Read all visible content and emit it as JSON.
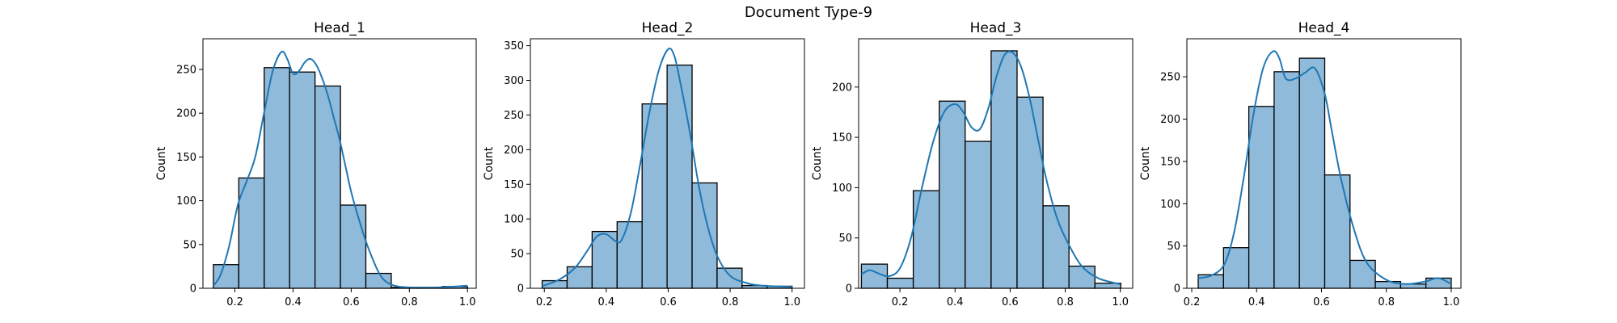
{
  "figure": {
    "suptitle": "Document Type-9"
  },
  "style": {
    "bar_fill": "#8fbad9",
    "bar_edge": "#000000",
    "kde_color": "#1f77b4",
    "axes_edge": "#000000"
  },
  "chart_data": [
    {
      "type": "histogram",
      "title": "Head_1",
      "ylabel": "Count",
      "xlim": [
        0.09,
        1.03
      ],
      "ylim": [
        0,
        285
      ],
      "xticks": [
        "0.2",
        "0.4",
        "0.6",
        "0.8",
        "1.0"
      ],
      "yticks": [
        "0",
        "50",
        "100",
        "150",
        "200",
        "250"
      ],
      "bin_edges": [
        0.126,
        0.2134,
        0.3008,
        0.3882,
        0.4756,
        0.563,
        0.6504,
        0.7378,
        0.8252,
        0.9126,
        1.0
      ],
      "values": [
        27,
        126,
        252,
        247,
        231,
        95,
        17,
        1,
        1,
        2
      ],
      "kde": {
        "x": [
          0.126,
          0.15,
          0.18,
          0.21,
          0.24,
          0.27,
          0.3,
          0.33,
          0.36,
          0.38,
          0.4,
          0.42,
          0.44,
          0.46,
          0.48,
          0.5,
          0.52,
          0.54,
          0.56,
          0.58,
          0.6,
          0.63,
          0.66,
          0.7,
          0.74,
          0.8,
          0.9,
          1.0
        ],
        "y": [
          3,
          15,
          48,
          95,
          122,
          150,
          200,
          248,
          270,
          262,
          245,
          248,
          258,
          262,
          255,
          240,
          220,
          195,
          170,
          140,
          110,
          75,
          45,
          15,
          4,
          1,
          1,
          3
        ]
      }
    },
    {
      "type": "histogram",
      "title": "Head_2",
      "ylabel": "Count",
      "xlim": [
        0.155,
        1.04
      ],
      "ylim": [
        0,
        360
      ],
      "xticks": [
        "0.2",
        "0.4",
        "0.6",
        "0.8",
        "1.0"
      ],
      "yticks": [
        "0",
        "50",
        "100",
        "150",
        "200",
        "250",
        "300",
        "350"
      ],
      "bin_edges": [
        0.193,
        0.2737,
        0.3544,
        0.4351,
        0.5158,
        0.5965,
        0.6772,
        0.7579,
        0.8386,
        0.9193,
        1.0
      ],
      "values": [
        11,
        31,
        82,
        96,
        266,
        322,
        152,
        29,
        4,
        3
      ],
      "kde": {
        "x": [
          0.193,
          0.25,
          0.3,
          0.34,
          0.37,
          0.4,
          0.43,
          0.45,
          0.48,
          0.51,
          0.54,
          0.57,
          0.6,
          0.62,
          0.64,
          0.67,
          0.7,
          0.73,
          0.76,
          0.8,
          0.85,
          0.9,
          1.0
        ],
        "y": [
          3,
          13,
          30,
          55,
          75,
          78,
          68,
          70,
          110,
          180,
          255,
          315,
          345,
          335,
          295,
          225,
          145,
          85,
          45,
          18,
          8,
          4,
          2
        ]
      }
    },
    {
      "type": "histogram",
      "title": "Head_3",
      "ylabel": "Count",
      "xlim": [
        0.05,
        1.045
      ],
      "ylim": [
        0,
        248
      ],
      "xticks": [
        "0.2",
        "0.4",
        "0.6",
        "0.8",
        "1.0"
      ],
      "yticks": [
        "0",
        "50",
        "100",
        "150",
        "200"
      ],
      "bin_edges": [
        0.06,
        0.1542,
        0.2484,
        0.3426,
        0.4368,
        0.531,
        0.6252,
        0.7194,
        0.8136,
        0.9078,
        1.002
      ],
      "values": [
        24,
        10,
        97,
        186,
        146,
        236,
        190,
        82,
        22,
        5
      ],
      "kde": {
        "x": [
          0.06,
          0.09,
          0.12,
          0.16,
          0.2,
          0.24,
          0.28,
          0.32,
          0.36,
          0.4,
          0.43,
          0.46,
          0.49,
          0.52,
          0.55,
          0.58,
          0.61,
          0.64,
          0.67,
          0.7,
          0.73,
          0.77,
          0.81,
          0.86,
          0.92,
          1.0
        ],
        "y": [
          14,
          18,
          15,
          12,
          20,
          50,
          100,
          145,
          175,
          183,
          175,
          160,
          158,
          178,
          210,
          232,
          234,
          220,
          190,
          150,
          110,
          70,
          45,
          22,
          10,
          4
        ]
      }
    },
    {
      "type": "histogram",
      "title": "Head_4",
      "ylabel": "Count",
      "xlim": [
        0.185,
        1.03
      ],
      "ylim": [
        0,
        295
      ],
      "xticks": [
        "0.2",
        "0.4",
        "0.6",
        "0.8",
        "1.0"
      ],
      "yticks": [
        "0",
        "50",
        "100",
        "150",
        "200",
        "250"
      ],
      "bin_edges": [
        0.22,
        0.298,
        0.376,
        0.454,
        0.532,
        0.61,
        0.688,
        0.766,
        0.844,
        0.922,
        1.0
      ],
      "values": [
        16,
        48,
        215,
        256,
        272,
        134,
        33,
        8,
        5,
        12
      ],
      "kde": {
        "x": [
          0.22,
          0.26,
          0.3,
          0.33,
          0.36,
          0.39,
          0.42,
          0.45,
          0.47,
          0.49,
          0.52,
          0.55,
          0.58,
          0.61,
          0.63,
          0.66,
          0.7,
          0.74,
          0.8,
          0.86,
          0.92,
          0.96,
          1.0
        ],
        "y": [
          12,
          15,
          28,
          65,
          130,
          205,
          260,
          280,
          272,
          248,
          248,
          255,
          260,
          230,
          190,
          130,
          70,
          30,
          10,
          5,
          8,
          12,
          5
        ]
      }
    }
  ]
}
